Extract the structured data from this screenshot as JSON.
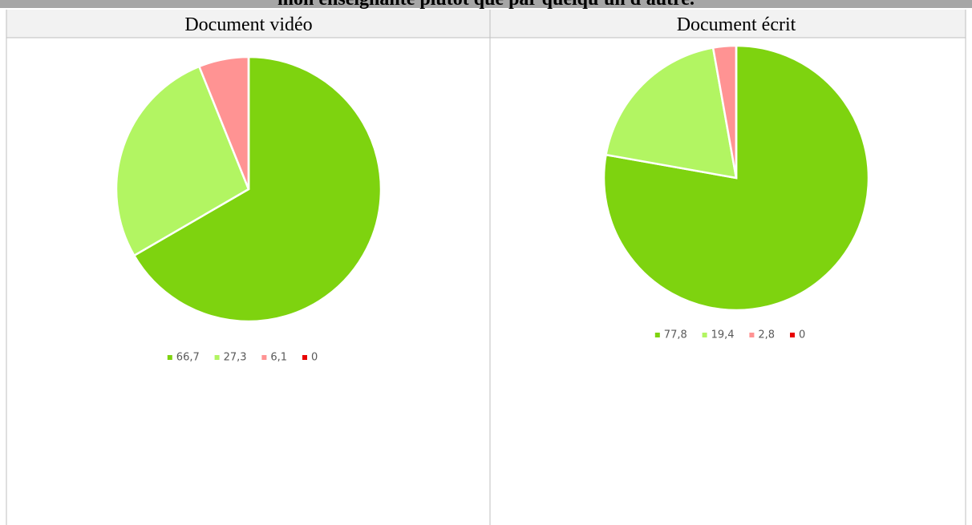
{
  "title": "mon enseignante plutôt que par quelqu'un d'autre.",
  "table": {
    "headers": [
      "Document vidéo",
      "Document écrit"
    ]
  },
  "chart_data": [
    {
      "type": "pie",
      "values": [
        66.7,
        27.3,
        6.1,
        0
      ],
      "value_labels": [
        "66,7",
        "27,3",
        "6,1",
        "0"
      ],
      "colors": [
        "#7ed30f",
        "#b2f562",
        "#ff9393",
        "#e80000"
      ]
    },
    {
      "type": "pie",
      "values": [
        77.8,
        19.4,
        2.8,
        0
      ],
      "value_labels": [
        "77,8",
        "19,4",
        "2,8",
        "0"
      ],
      "colors": [
        "#7ed30f",
        "#b2f562",
        "#ff9393",
        "#e80000"
      ]
    }
  ]
}
